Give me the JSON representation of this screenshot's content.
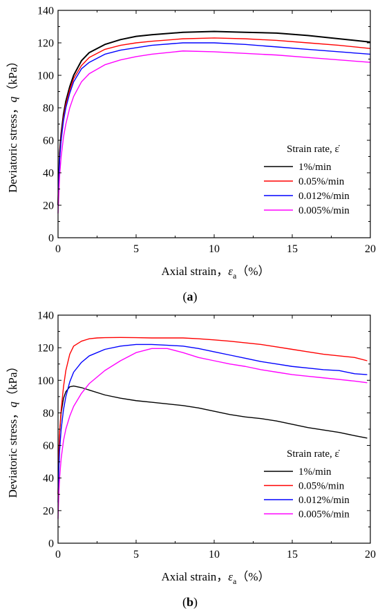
{
  "chart_data": [
    {
      "type": "line",
      "panel_label": "a",
      "xlabel_main": "Axial strain，",
      "xlabel_symbol": "ε",
      "xlabel_subscript": "a",
      "xlabel_unit": "（%）",
      "ylabel_main": "Deviatoric stress，",
      "ylabel_symbol": "q",
      "ylabel_unit": "（kPa）",
      "xlim": [
        0,
        20
      ],
      "ylim": [
        0,
        140
      ],
      "xticks": [
        "0",
        "5",
        "10",
        "15",
        "20"
      ],
      "yticks": [
        "0",
        "20",
        "40",
        "60",
        "80",
        "100",
        "120",
        "140"
      ],
      "grid": false,
      "legend_title": "Strain rate, ε̇",
      "legend_placement": "lower-right",
      "series": [
        {
          "name": "1%/min",
          "color": "#000000",
          "x": [
            0,
            0.1,
            0.2,
            0.35,
            0.5,
            0.75,
            1,
            1.5,
            2,
            3,
            4,
            5,
            6,
            8,
            10,
            12,
            14,
            16,
            18,
            20
          ],
          "y": [
            20,
            52,
            64,
            76,
            84,
            93,
            100,
            109,
            114,
            119,
            122,
            124,
            125,
            126.5,
            127,
            126.5,
            126,
            124.5,
            122.5,
            120.5
          ]
        },
        {
          "name": "0.05%/min",
          "color": "#ff0000",
          "x": [
            0,
            0.1,
            0.2,
            0.35,
            0.5,
            0.75,
            1,
            1.5,
            2,
            3,
            4,
            5,
            6,
            8,
            10,
            12,
            14,
            16,
            18,
            20
          ],
          "y": [
            20,
            50,
            62,
            74,
            82,
            91,
            98,
            106,
            111,
            116,
            118.5,
            120,
            121,
            122.5,
            123,
            122.5,
            121.5,
            120,
            118.5,
            116.5
          ]
        },
        {
          "name": "0.012%/min",
          "color": "#0000ff",
          "x": [
            0,
            0.1,
            0.2,
            0.35,
            0.5,
            0.75,
            1,
            1.5,
            2,
            3,
            4,
            5,
            6,
            8,
            10,
            12,
            14,
            16,
            18,
            20
          ],
          "y": [
            20,
            48,
            60,
            72,
            80,
            89,
            96,
            104,
            108,
            113,
            115.5,
            117,
            118.5,
            120,
            120,
            119,
            117.5,
            116,
            114.5,
            113
          ]
        },
        {
          "name": "0.005%/min",
          "color": "#ff00ff",
          "x": [
            0,
            0.1,
            0.2,
            0.35,
            0.5,
            0.75,
            1,
            1.5,
            2,
            3,
            4,
            5,
            6,
            8,
            10,
            12,
            14,
            16,
            18,
            20
          ],
          "y": [
            15,
            38,
            50,
            62,
            70,
            80,
            87,
            96,
            101,
            106.5,
            109.5,
            111.5,
            113,
            115,
            114.5,
            113.5,
            112.5,
            111,
            109.5,
            108
          ]
        }
      ]
    },
    {
      "type": "line",
      "panel_label": "b",
      "xlabel_main": "Axial strain，",
      "xlabel_symbol": "ε",
      "xlabel_subscript": "a",
      "xlabel_unit": "（%）",
      "ylabel_main": "Deviatoric stress，",
      "ylabel_symbol": "q",
      "ylabel_unit": "（kPa）",
      "xlim": [
        0,
        20
      ],
      "ylim": [
        0,
        140
      ],
      "xticks": [
        "0",
        "5",
        "10",
        "15",
        "20"
      ],
      "yticks": [
        "0",
        "20",
        "40",
        "60",
        "80",
        "100",
        "120",
        "140"
      ],
      "grid": false,
      "legend_title": "Strain rate, ε̇",
      "legend_placement": "lower-right",
      "series": [
        {
          "name": "1%/min",
          "color": "#000000",
          "x": [
            0,
            0.05,
            0.1,
            0.2,
            0.35,
            0.5,
            0.75,
            1,
            1.5,
            2,
            3,
            4,
            5,
            6,
            7,
            8,
            9,
            10,
            11,
            12,
            13,
            14,
            15,
            16,
            17,
            18,
            19,
            19.8
          ],
          "y": [
            30,
            55,
            68,
            80,
            89,
            93,
            96,
            96.5,
            95.5,
            94,
            91,
            89,
            87.5,
            86.5,
            85.5,
            84.5,
            83,
            81,
            79,
            77.5,
            76.5,
            75,
            73,
            71,
            69.5,
            68,
            66,
            64.5
          ]
        },
        {
          "name": "0.05%/min",
          "color": "#ff0000",
          "x": [
            0,
            0.05,
            0.1,
            0.2,
            0.35,
            0.5,
            0.75,
            1,
            1.5,
            2,
            2.5,
            3,
            4,
            5,
            6,
            7,
            8,
            9,
            10,
            11,
            12,
            13,
            14,
            15,
            16,
            17,
            18,
            19,
            19.8
          ],
          "y": [
            30,
            55,
            68,
            82,
            96,
            106,
            116,
            121,
            124,
            125.5,
            126,
            126.2,
            126.3,
            126.2,
            126,
            126,
            126,
            125.5,
            124.8,
            124,
            123,
            122,
            120.5,
            119,
            117.5,
            116,
            115,
            114,
            112
          ]
        },
        {
          "name": "0.012%/min",
          "color": "#0000ff",
          "x": [
            0,
            0.05,
            0.1,
            0.2,
            0.35,
            0.5,
            0.75,
            1,
            1.5,
            2,
            3,
            4,
            5,
            6,
            7,
            8,
            9,
            10,
            11,
            12,
            13,
            14,
            15,
            16,
            17,
            18,
            19,
            19.8
          ],
          "y": [
            25,
            45,
            57,
            70,
            82,
            90,
            99,
            105,
            111,
            115,
            119,
            121,
            122,
            122,
            121.5,
            121,
            119.5,
            117.5,
            115.5,
            113.5,
            111.5,
            110,
            108.5,
            107.5,
            106.5,
            106,
            104,
            103.5
          ]
        },
        {
          "name": "0.005%/min",
          "color": "#ff00ff",
          "x": [
            0,
            0.05,
            0.1,
            0.2,
            0.35,
            0.5,
            0.75,
            1,
            1.5,
            2,
            3,
            4,
            5,
            6,
            7,
            8,
            9,
            10,
            11,
            12,
            13,
            14,
            15,
            16,
            17,
            18,
            19,
            19.8
          ],
          "y": [
            15,
            30,
            40,
            52,
            63,
            70,
            78,
            84,
            92,
            98,
            106,
            112,
            117,
            119.5,
            119.5,
            117,
            114,
            112,
            110,
            108.5,
            106.5,
            105,
            103.5,
            102.5,
            101.5,
            100.5,
            99.5,
            98.5
          ]
        }
      ]
    }
  ]
}
